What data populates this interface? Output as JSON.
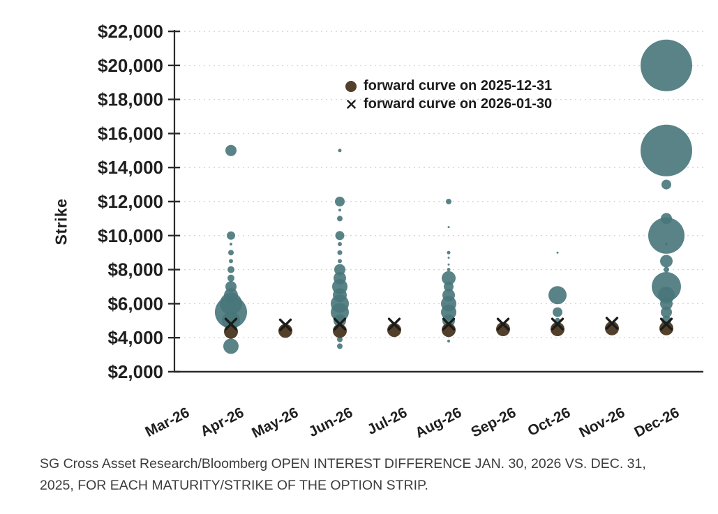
{
  "caption": {
    "lines": [
      "SG Cross Asset Research/Bloomberg OPEN INTEREST DIFFERENCE JAN. 30, 2026 VS. DEC. 31,",
      "2025, FOR EACH MATURITY/STRIKE OF THE OPTION STRIP."
    ]
  },
  "chart_data": {
    "type": "bubble-scatter",
    "title": "",
    "xlabel": "",
    "ylabel": "Strike",
    "ylim": [
      2000,
      22000
    ],
    "yticks": [
      2000,
      4000,
      6000,
      8000,
      10000,
      12000,
      14000,
      16000,
      18000,
      20000,
      22000
    ],
    "ytick_labels": [
      "$2,000",
      "$4,000",
      "$6,000",
      "$8,000",
      "$10,000",
      "$12,000",
      "$14,000",
      "$16,000",
      "$18,000",
      "$20,000",
      "$22,000"
    ],
    "categories": [
      "Mar-26",
      "Apr-26",
      "May-26",
      "Jun-26",
      "Jul-26",
      "Aug-26",
      "Sep-26",
      "Oct-26",
      "Nov-26",
      "Dec-26"
    ],
    "grid": "horizontal dotted",
    "legend_position": "inside top-center",
    "legend": [
      {
        "marker": "filled-dot",
        "label": "forward curve on 2025-12-31"
      },
      {
        "marker": "x-cross",
        "label": "forward curve on 2026-01-30"
      }
    ],
    "colors": {
      "bubble": "#47757a",
      "forward_dot": "#53402b",
      "x_marker": "#1b1b1b",
      "grid": "#d4d4d4",
      "axis": "#2a2a2a",
      "tick_text": "#1f1f1f",
      "caption_text": "#3d3d3d"
    },
    "marker_sizes": {
      "forward_dot_r": 10,
      "x_half": 7.5
    },
    "open_interest_bubbles": [
      {
        "month": "Apr-26",
        "points": [
          {
            "strike": 15000,
            "r": 8
          },
          {
            "strike": 10000,
            "r": 6
          },
          {
            "strike": 9500,
            "r": 2
          },
          {
            "strike": 9000,
            "r": 4
          },
          {
            "strike": 8500,
            "r": 3
          },
          {
            "strike": 8000,
            "r": 5
          },
          {
            "strike": 7500,
            "r": 5
          },
          {
            "strike": 7000,
            "r": 8
          },
          {
            "strike": 6500,
            "r": 10
          },
          {
            "strike": 6000,
            "r": 16
          },
          {
            "strike": 5500,
            "r": 23
          },
          {
            "strike": 5000,
            "r": 13
          },
          {
            "strike": 3500,
            "r": 11
          }
        ]
      },
      {
        "month": "Jun-26",
        "points": [
          {
            "strike": 15000,
            "r": 2.5
          },
          {
            "strike": 12000,
            "r": 7
          },
          {
            "strike": 11500,
            "r": 2
          },
          {
            "strike": 11000,
            "r": 4
          },
          {
            "strike": 10000,
            "r": 6.5
          },
          {
            "strike": 9500,
            "r": 3
          },
          {
            "strike": 9000,
            "r": 3.5
          },
          {
            "strike": 8500,
            "r": 3
          },
          {
            "strike": 8000,
            "r": 8
          },
          {
            "strike": 7500,
            "r": 9
          },
          {
            "strike": 7000,
            "r": 11
          },
          {
            "strike": 6500,
            "r": 10
          },
          {
            "strike": 6000,
            "r": 13
          },
          {
            "strike": 5500,
            "r": 13
          },
          {
            "strike": 5000,
            "r": 9
          },
          {
            "strike": 3900,
            "r": 4
          },
          {
            "strike": 3500,
            "r": 4
          }
        ]
      },
      {
        "month": "Aug-26",
        "points": [
          {
            "strike": 12000,
            "r": 4
          },
          {
            "strike": 10500,
            "r": 1.5
          },
          {
            "strike": 9000,
            "r": 2.5
          },
          {
            "strike": 8700,
            "r": 1.5
          },
          {
            "strike": 8300,
            "r": 1.5
          },
          {
            "strike": 8000,
            "r": 2.5
          },
          {
            "strike": 7500,
            "r": 10
          },
          {
            "strike": 7000,
            "r": 7
          },
          {
            "strike": 6500,
            "r": 9
          },
          {
            "strike": 6000,
            "r": 11
          },
          {
            "strike": 5500,
            "r": 11
          },
          {
            "strike": 5000,
            "r": 9
          },
          {
            "strike": 3800,
            "r": 2
          }
        ]
      },
      {
        "month": "Oct-26",
        "points": [
          {
            "strike": 9000,
            "r": 1.5
          },
          {
            "strike": 6500,
            "r": 13
          },
          {
            "strike": 5500,
            "r": 7
          },
          {
            "strike": 5000,
            "r": 4
          }
        ]
      },
      {
        "month": "Dec-26",
        "points": [
          {
            "strike": 20000,
            "r": 37
          },
          {
            "strike": 15000,
            "r": 37
          },
          {
            "strike": 13000,
            "r": 7
          },
          {
            "strike": 11000,
            "r": 8
          },
          {
            "strike": 10000,
            "r": 26
          },
          {
            "strike": 9500,
            "r": 2
          },
          {
            "strike": 8500,
            "r": 9
          },
          {
            "strike": 8000,
            "r": 4
          },
          {
            "strike": 7000,
            "r": 21
          },
          {
            "strike": 6500,
            "r": 12
          },
          {
            "strike": 6000,
            "r": 9
          },
          {
            "strike": 5500,
            "r": 8
          },
          {
            "strike": 5000,
            "r": 7
          }
        ]
      }
    ],
    "forward_curve_2025_12_31": [
      {
        "month": "Apr-26",
        "strike": 4350
      },
      {
        "month": "May-26",
        "strike": 4400
      },
      {
        "month": "Jun-26",
        "strike": 4400
      },
      {
        "month": "Jul-26",
        "strike": 4450
      },
      {
        "month": "Aug-26",
        "strike": 4450
      },
      {
        "month": "Sep-26",
        "strike": 4500
      },
      {
        "month": "Oct-26",
        "strike": 4500
      },
      {
        "month": "Nov-26",
        "strike": 4550
      },
      {
        "month": "Dec-26",
        "strike": 4550
      }
    ],
    "forward_curve_2026_01_30": [
      {
        "month": "Apr-26",
        "strike": 4800
      },
      {
        "month": "May-26",
        "strike": 4750
      },
      {
        "month": "Jun-26",
        "strike": 4800
      },
      {
        "month": "Jul-26",
        "strike": 4800
      },
      {
        "month": "Aug-26",
        "strike": 4800
      },
      {
        "month": "Sep-26",
        "strike": 4800
      },
      {
        "month": "Oct-26",
        "strike": 4800
      },
      {
        "month": "Nov-26",
        "strike": 4850
      },
      {
        "month": "Dec-26",
        "strike": 4800
      }
    ]
  }
}
